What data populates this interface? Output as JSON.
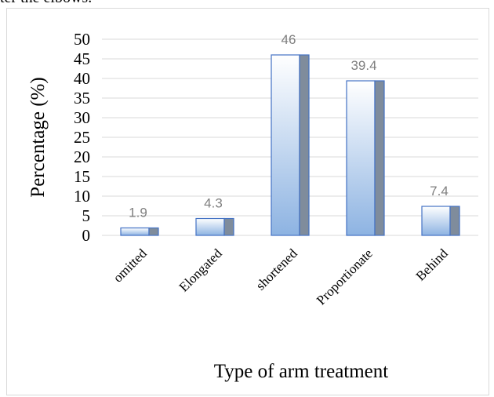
{
  "page_fragment": "ter the elbows.",
  "chart_data": {
    "type": "bar",
    "categories": [
      "omitted",
      "Elongated",
      "shortened",
      "Proportionate",
      "Behind"
    ],
    "values": [
      1.9,
      4.3,
      46,
      39.4,
      7.4
    ],
    "value_labels": [
      "1.9",
      "4.3",
      "46",
      "39.4",
      "7.4"
    ],
    "xlabel": "Type of arm treatment",
    "ylabel": "Percentage (%)",
    "ylim": [
      0,
      50
    ],
    "yticks": [
      "0",
      "5",
      "10",
      "15",
      "20",
      "25",
      "30",
      "35",
      "40",
      "45",
      "50"
    ],
    "grid": true,
    "legend": "none",
    "colors": {
      "bar_light": "#ffffff",
      "bar_dark": "#8db3e2",
      "bar_side": "#7f8c9c",
      "bar_border": "#4472c4",
      "grid": "#d9d9d9",
      "data_label": "#7f7f7f"
    }
  }
}
